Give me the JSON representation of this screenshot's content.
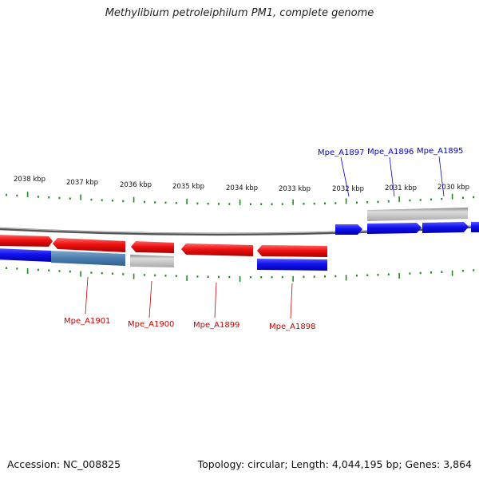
{
  "title": "Methylibium petroleiphilum PM1, complete genome",
  "footer": {
    "accession": "Accession: NC_008825",
    "summary": "Topology: circular; Length: 4,044,195 bp; Genes: 3,864"
  },
  "ruler_labels": [
    "2038 kbp",
    "2037 kbp",
    "2036 kbp",
    "2035 kbp",
    "2034 kbp",
    "2033 kbp",
    "2032 kbp",
    "2031 kbp",
    "2030 kbp"
  ],
  "colors": {
    "forward_gene": "#ee1111",
    "reverse_gene": "#1111ee",
    "pseudo_gene": "#bbbbbb",
    "steelblue_gene": "#4a7fb0",
    "tick": "#228822",
    "red_label": "#cc0000",
    "blue_label": "#0000cc"
  },
  "gene_labels": {
    "top": [
      "Mpe_A1897",
      "Mpe_A1896",
      "Mpe_A1895"
    ],
    "bottom": [
      "Mpe_A1901",
      "Mpe_A1900",
      "Mpe_A1899",
      "Mpe_A1898"
    ]
  }
}
